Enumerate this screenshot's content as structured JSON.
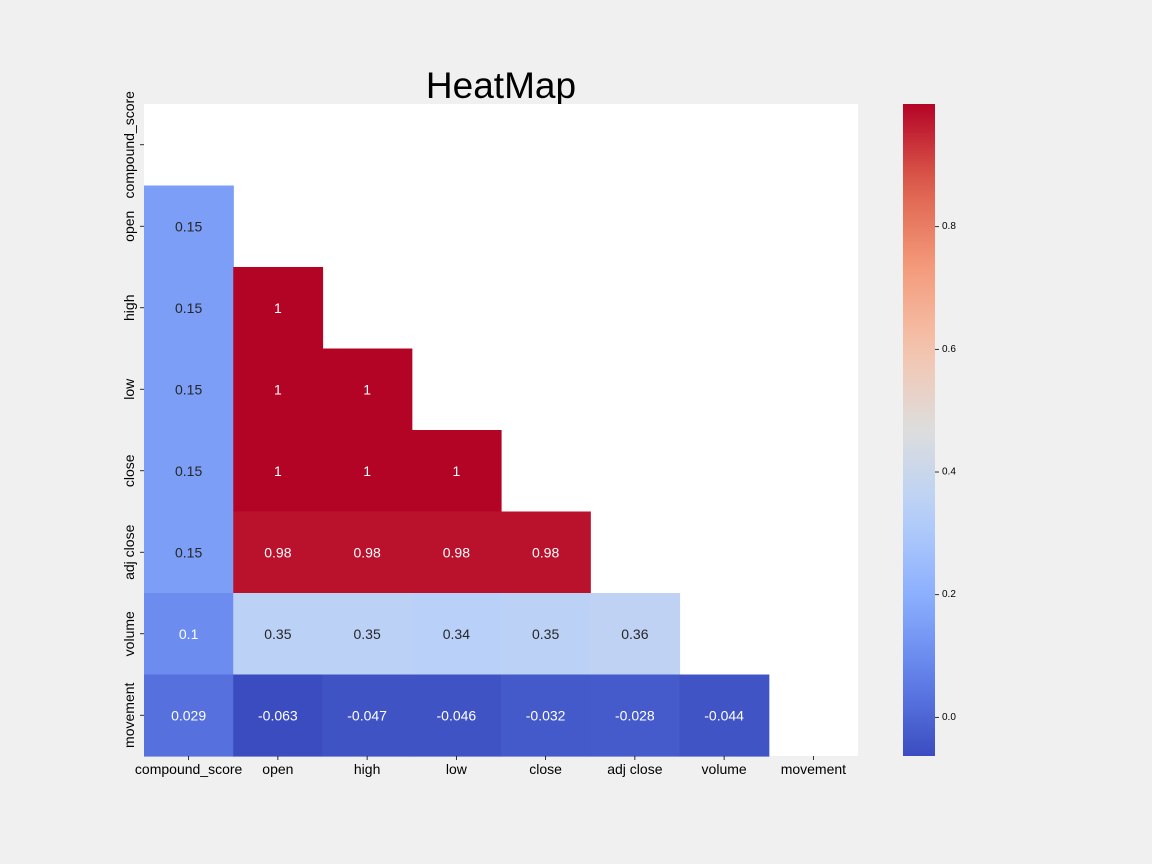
{
  "chart_data": {
    "type": "heatmap",
    "title": "HeatMap",
    "x_categories": [
      "compound_score",
      "open",
      "high",
      "low",
      "close",
      "adj close",
      "volume",
      "movement"
    ],
    "y_categories": [
      "compound_score",
      "open",
      "high",
      "low",
      "close",
      "adj close",
      "volume",
      "movement"
    ],
    "mask": "upper-triangle-including-diagonal",
    "cells": [
      {
        "row": 1,
        "col": 0,
        "value": 0.15,
        "label": "0.15"
      },
      {
        "row": 2,
        "col": 0,
        "value": 0.15,
        "label": "0.15"
      },
      {
        "row": 2,
        "col": 1,
        "value": 1.0,
        "label": "1"
      },
      {
        "row": 3,
        "col": 0,
        "value": 0.15,
        "label": "0.15"
      },
      {
        "row": 3,
        "col": 1,
        "value": 1.0,
        "label": "1"
      },
      {
        "row": 3,
        "col": 2,
        "value": 1.0,
        "label": "1"
      },
      {
        "row": 4,
        "col": 0,
        "value": 0.15,
        "label": "0.15"
      },
      {
        "row": 4,
        "col": 1,
        "value": 1.0,
        "label": "1"
      },
      {
        "row": 4,
        "col": 2,
        "value": 1.0,
        "label": "1"
      },
      {
        "row": 4,
        "col": 3,
        "value": 1.0,
        "label": "1"
      },
      {
        "row": 5,
        "col": 0,
        "value": 0.15,
        "label": "0.15"
      },
      {
        "row": 5,
        "col": 1,
        "value": 0.98,
        "label": "0.98"
      },
      {
        "row": 5,
        "col": 2,
        "value": 0.98,
        "label": "0.98"
      },
      {
        "row": 5,
        "col": 3,
        "value": 0.98,
        "label": "0.98"
      },
      {
        "row": 5,
        "col": 4,
        "value": 0.98,
        "label": "0.98"
      },
      {
        "row": 6,
        "col": 0,
        "value": 0.1,
        "label": "0.1"
      },
      {
        "row": 6,
        "col": 1,
        "value": 0.35,
        "label": "0.35"
      },
      {
        "row": 6,
        "col": 2,
        "value": 0.35,
        "label": "0.35"
      },
      {
        "row": 6,
        "col": 3,
        "value": 0.34,
        "label": "0.34"
      },
      {
        "row": 6,
        "col": 4,
        "value": 0.35,
        "label": "0.35"
      },
      {
        "row": 6,
        "col": 5,
        "value": 0.36,
        "label": "0.36"
      },
      {
        "row": 7,
        "col": 0,
        "value": 0.029,
        "label": "0.029"
      },
      {
        "row": 7,
        "col": 1,
        "value": -0.063,
        "label": "-0.063"
      },
      {
        "row": 7,
        "col": 2,
        "value": -0.047,
        "label": "-0.047"
      },
      {
        "row": 7,
        "col": 3,
        "value": -0.046,
        "label": "-0.046"
      },
      {
        "row": 7,
        "col": 4,
        "value": -0.032,
        "label": "-0.032"
      },
      {
        "row": 7,
        "col": 5,
        "value": -0.028,
        "label": "-0.028"
      },
      {
        "row": 7,
        "col": 6,
        "value": -0.044,
        "label": "-0.044"
      }
    ],
    "colorbar": {
      "colormap": "coolwarm",
      "range": [
        -0.063,
        1.0
      ],
      "ticks": [
        0.0,
        0.2,
        0.4,
        0.6,
        0.8
      ],
      "tick_labels": [
        "0.0",
        "0.2",
        "0.4",
        "0.6",
        "0.8"
      ]
    },
    "grid": false,
    "legend": "colorbar-right"
  },
  "colors": {
    "figure_background": "#f0f0f0",
    "axes_background": "#ffffff",
    "text": "#000000",
    "cell_text_on_light": "#262626",
    "cell_text_on_dark": "#ffffff"
  }
}
